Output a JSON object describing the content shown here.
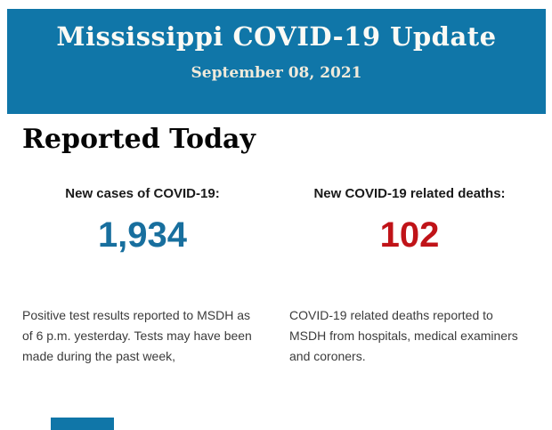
{
  "banner": {
    "title": "Mississippi COVID-19 Update",
    "date": "September 08, 2021",
    "bg_color": "#1076A8",
    "title_color": "#FBFAF5",
    "date_color": "#EFEADB"
  },
  "section": {
    "heading": "Reported Today"
  },
  "stats": [
    {
      "label": "New cases of COVID-19:",
      "value": "1,934",
      "value_color": "#186F9E",
      "description": "Positive test results reported to MSDH as\nof 6 p.m. yesterday. Tests may have been\nmade during the past week,"
    },
    {
      "label": "New COVID-19 related deaths:",
      "value": "102",
      "value_color": "#C01318",
      "description": "COVID-19 related deaths reported to\nMSDH from hospitals, medical examiners\nand coroners."
    }
  ],
  "footer": {
    "partial_next_section_color": "#1076A8"
  }
}
